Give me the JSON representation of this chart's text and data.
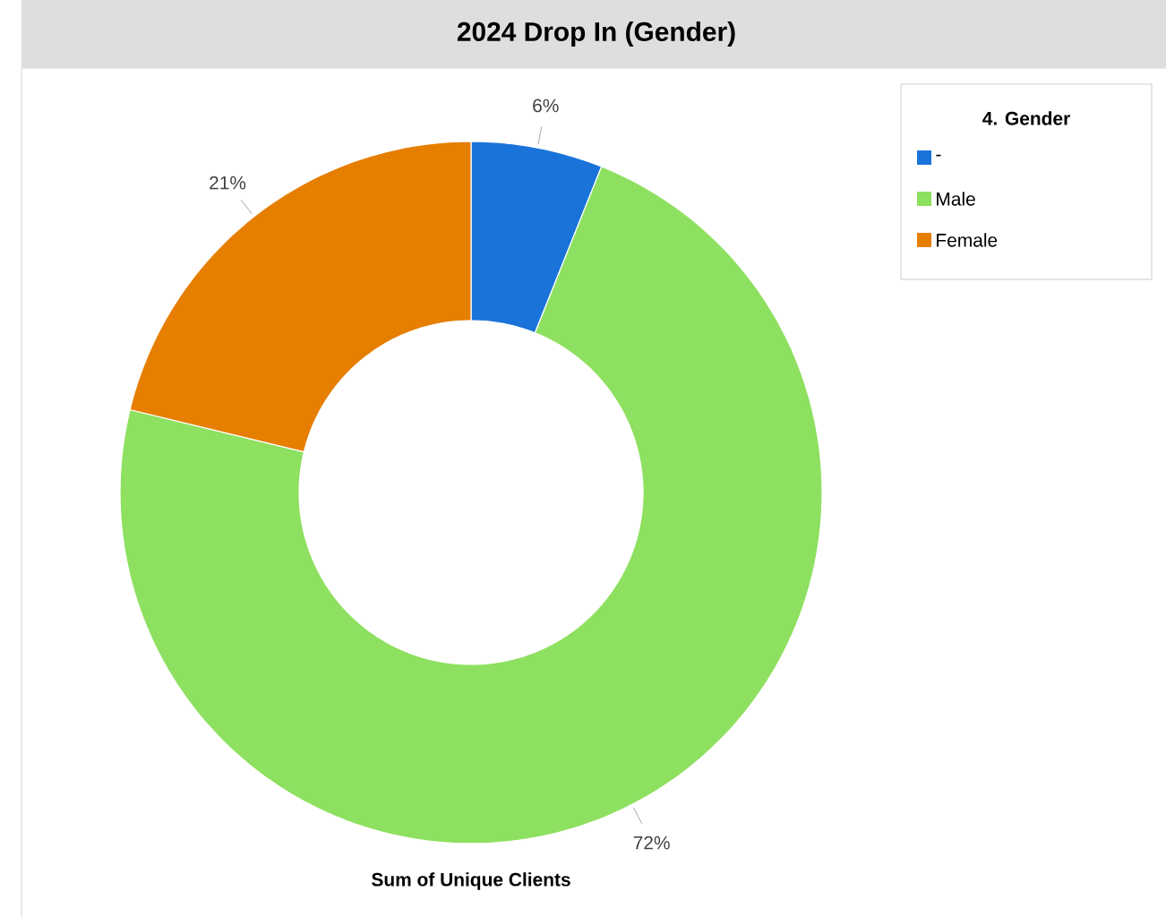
{
  "chart_data": {
    "type": "donut",
    "title": "2024 Drop In (Gender)",
    "categories": [
      "-",
      "Male",
      "Female"
    ],
    "values": [
      6,
      72,
      21
    ],
    "value_labels": [
      "6%",
      "72%",
      "21%"
    ],
    "colors": [
      "#1a73d9",
      "#8ee060",
      "#e67e00"
    ],
    "legend": "top right",
    "legend_title": "4. Gender",
    "annotations": [
      "Sum of Unique Clients"
    ]
  }
}
